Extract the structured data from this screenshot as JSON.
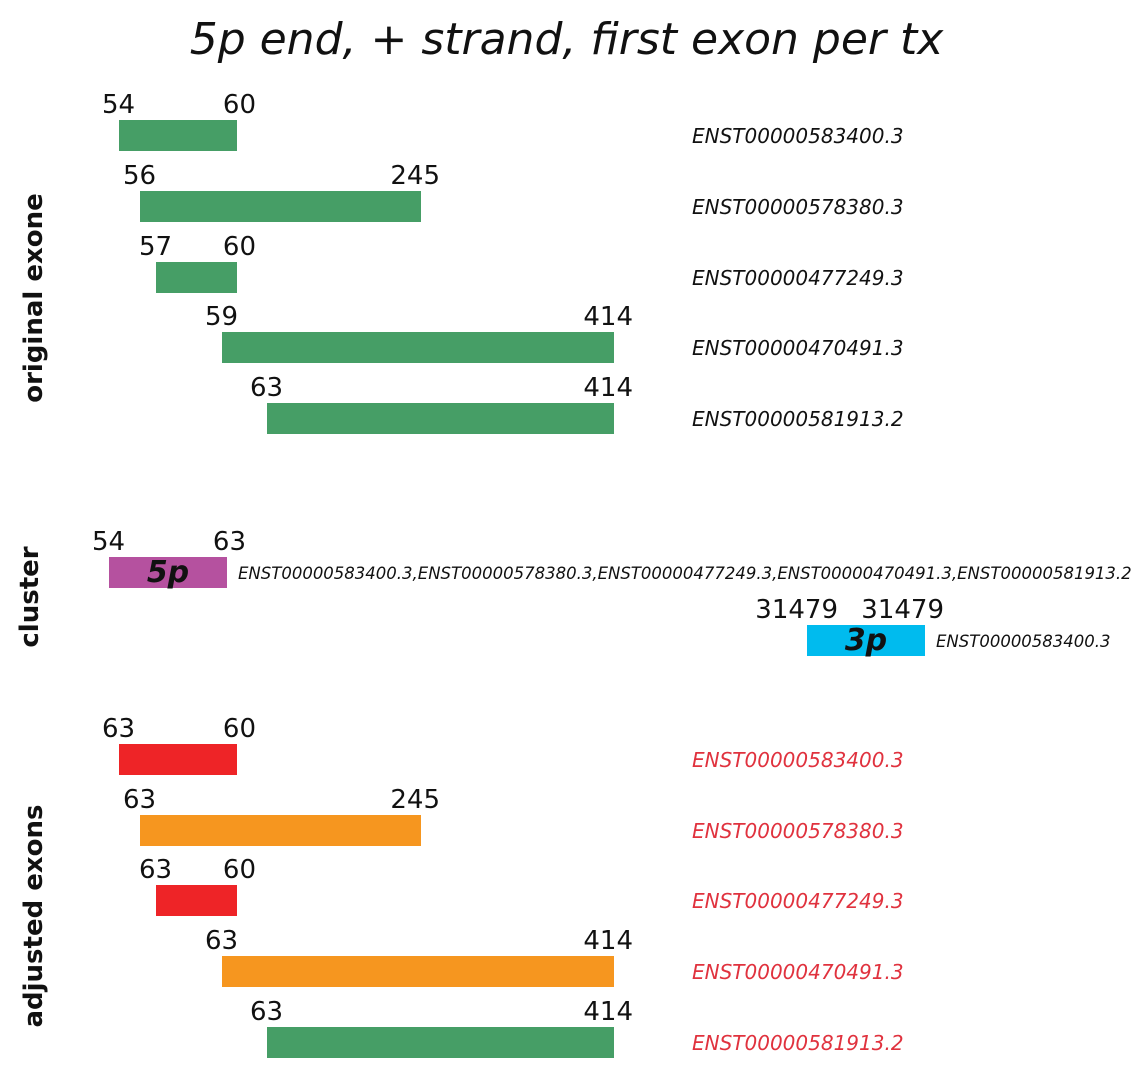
{
  "title": "5p end, + strand, first exon per tx",
  "colors": {
    "green": "#469e66",
    "red": "#ee2427",
    "orange": "#f6961f",
    "magenta": "#b5519f",
    "cyan": "#00bbee",
    "tx_red": "#e0323e",
    "text": "#111111"
  },
  "sections": {
    "original": "original exone",
    "cluster": "cluster",
    "adjusted": "adjusted exons"
  },
  "original": [
    {
      "start": "54",
      "end": "60",
      "tx": "ENST00000583400.3",
      "color": "green"
    },
    {
      "start": "56",
      "end": "245",
      "tx": "ENST00000578380.3",
      "color": "green"
    },
    {
      "start": "57",
      "end": "60",
      "tx": "ENST00000477249.3",
      "color": "green"
    },
    {
      "start": "59",
      "end": "414",
      "tx": "ENST00000470491.3",
      "color": "green"
    },
    {
      "start": "63",
      "end": "414",
      "tx": "ENST00000581913.2",
      "color": "green"
    }
  ],
  "cluster": [
    {
      "start": "54",
      "end": "63",
      "label": "5p",
      "tx": "ENST00000583400.3,ENST00000578380.3,ENST00000477249.3,ENST00000470491.3,ENST00000581913.2",
      "color": "magenta"
    },
    {
      "start": "31479",
      "end": "31479",
      "label": "3p",
      "tx": "ENST00000583400.3",
      "color": "cyan"
    }
  ],
  "adjusted": [
    {
      "start": "63",
      "end": "60",
      "tx": "ENST00000583400.3",
      "color": "red"
    },
    {
      "start": "63",
      "end": "245",
      "tx": "ENST00000578380.3",
      "color": "orange"
    },
    {
      "start": "63",
      "end": "60",
      "tx": "ENST00000477249.3",
      "color": "red"
    },
    {
      "start": "63",
      "end": "414",
      "tx": "ENST00000470491.3",
      "color": "orange"
    },
    {
      "start": "63",
      "end": "414",
      "tx": "ENST00000581913.2",
      "color": "green"
    }
  ]
}
